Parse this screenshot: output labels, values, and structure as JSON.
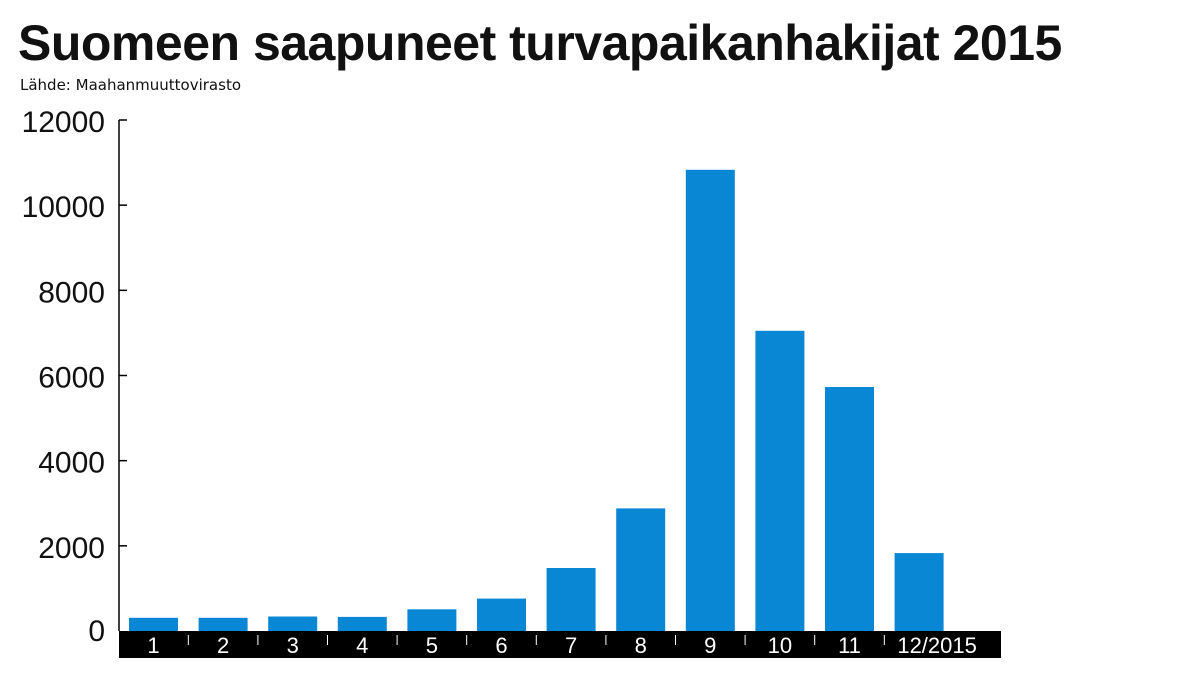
{
  "title": "Suomeen saapuneet turvapaikanhakijat 2015",
  "source": "Lähde: Maahanmuuttovirasto",
  "colors": {
    "bar": "#0a87d4",
    "axis_band": "#000000",
    "text": "#111111"
  },
  "chart_data": {
    "type": "bar",
    "title": "Suomeen saapuneet turvapaikanhakijat 2015",
    "xlabel": "",
    "ylabel": "",
    "categories": [
      "1",
      "2",
      "3",
      "4",
      "5",
      "6",
      "7",
      "8",
      "9",
      "10",
      "11",
      "12/2015"
    ],
    "values": [
      310,
      310,
      340,
      330,
      510,
      760,
      1480,
      2880,
      10830,
      7050,
      5730,
      1830
    ],
    "ylim": [
      0,
      12000
    ],
    "yticks": [
      0,
      2000,
      4000,
      6000,
      8000,
      10000,
      12000
    ],
    "grid": false,
    "legend": "none"
  }
}
